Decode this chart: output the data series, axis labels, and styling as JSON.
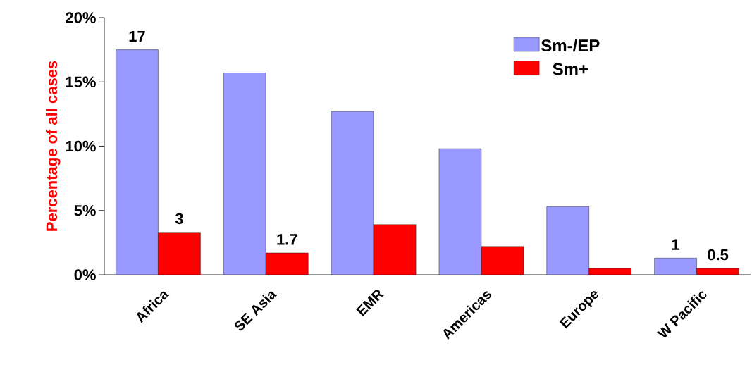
{
  "chart_data": {
    "type": "bar",
    "ylabel": "Percentage of all cases",
    "categories": [
      "Africa",
      "SE Asia",
      "EMR",
      "Americas",
      "Europe",
      "W Pacific"
    ],
    "series": [
      {
        "name": "Sm-/EP",
        "color": "#9999ff",
        "values": [
          17.5,
          15.7,
          12.7,
          9.8,
          5.3,
          1.3
        ],
        "value_labels": [
          "17",
          null,
          null,
          null,
          null,
          "1"
        ]
      },
      {
        "name": "Sm+",
        "color": "#ff0000",
        "values": [
          3.3,
          1.7,
          3.9,
          2.2,
          0.5,
          0.5
        ],
        "value_labels": [
          "3",
          "1.7",
          null,
          null,
          null,
          "0.5"
        ]
      }
    ],
    "ylim": [
      0,
      20
    ],
    "yticks": [
      {
        "value": 0,
        "label": "0%"
      },
      {
        "value": 5,
        "label": "5%"
      },
      {
        "value": 10,
        "label": "10%"
      },
      {
        "value": 15,
        "label": "15%"
      },
      {
        "value": 20,
        "label": "20%"
      }
    ],
    "grid": false,
    "legend": "top right"
  }
}
